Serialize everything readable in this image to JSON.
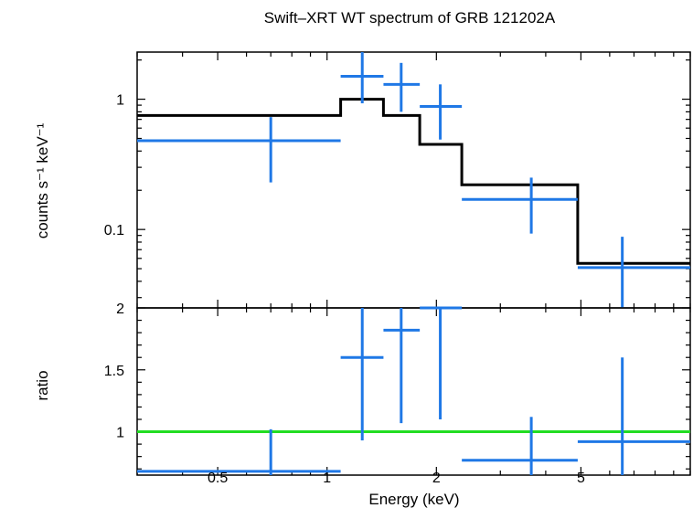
{
  "chart_data": {
    "type": "line",
    "title": "Swift–XRT WT spectrum of GRB 121202A",
    "xlabel": "Energy (keV)",
    "x_scale": "log",
    "xlim": [
      0.3,
      10
    ],
    "x_ticks": [
      0.5,
      1,
      2,
      5
    ],
    "x_tick_labels": [
      "0.5",
      "1",
      "2",
      "5"
    ],
    "panels": [
      {
        "name": "spectrum",
        "ylabel": "counts s⁻¹ keV⁻¹",
        "y_scale": "log",
        "ylim": [
          0.025,
          2.3
        ],
        "y_ticks": [
          0.1,
          1
        ],
        "y_tick_labels": [
          "0.1",
          "1"
        ],
        "data_color": "#1f78e6",
        "model_color": "#000000",
        "data": [
          {
            "x": 0.7,
            "xlo": 0.3,
            "xhi": 1.09,
            "y": 0.48,
            "ylo": 0.23,
            "yhi": 0.73
          },
          {
            "x": 1.25,
            "xlo": 1.09,
            "xhi": 1.43,
            "y": 1.5,
            "ylo": 0.93,
            "yhi": 2.3
          },
          {
            "x": 1.6,
            "xlo": 1.43,
            "xhi": 1.8,
            "y": 1.3,
            "ylo": 0.8,
            "yhi": 1.9
          },
          {
            "x": 2.05,
            "xlo": 1.8,
            "xhi": 2.35,
            "y": 0.88,
            "ylo": 0.49,
            "yhi": 1.3
          },
          {
            "x": 3.65,
            "xlo": 2.35,
            "xhi": 4.9,
            "y": 0.17,
            "ylo": 0.093,
            "yhi": 0.25
          },
          {
            "x": 6.5,
            "xlo": 4.9,
            "xhi": 10,
            "y": 0.051,
            "ylo": 0.025,
            "yhi": 0.088
          }
        ],
        "model_steps": [
          {
            "xlo": 0.3,
            "xhi": 1.09,
            "y": 0.75
          },
          {
            "xlo": 1.09,
            "xhi": 1.43,
            "y": 1.0
          },
          {
            "xlo": 1.43,
            "xhi": 1.8,
            "y": 0.75
          },
          {
            "xlo": 1.8,
            "xhi": 2.35,
            "y": 0.45
          },
          {
            "xlo": 2.35,
            "xhi": 4.9,
            "y": 0.22
          },
          {
            "xlo": 4.9,
            "xhi": 10,
            "y": 0.055
          }
        ]
      },
      {
        "name": "ratio",
        "ylabel": "ratio",
        "y_scale": "linear",
        "ylim": [
          0.65,
          2.0
        ],
        "y_ticks": [
          1,
          1.5,
          2
        ],
        "y_tick_labels": [
          "1",
          "1.5",
          "2"
        ],
        "data_color": "#1f78e6",
        "reference_line": {
          "y": 1,
          "color": "#22dd22"
        },
        "data": [
          {
            "x": 0.7,
            "xlo": 0.3,
            "xhi": 1.09,
            "y": 0.68,
            "ylo": 0.65,
            "yhi": 1.02
          },
          {
            "x": 1.25,
            "xlo": 1.09,
            "xhi": 1.43,
            "y": 1.6,
            "ylo": 0.93,
            "yhi": 2.0
          },
          {
            "x": 1.6,
            "xlo": 1.43,
            "xhi": 1.8,
            "y": 1.82,
            "ylo": 1.07,
            "yhi": 2.0
          },
          {
            "x": 2.05,
            "xlo": 1.8,
            "xhi": 2.35,
            "y": 2.0,
            "ylo": 1.1,
            "yhi": 2.0
          },
          {
            "x": 3.65,
            "xlo": 2.35,
            "xhi": 4.9,
            "y": 0.77,
            "ylo": 0.65,
            "yhi": 1.12
          },
          {
            "x": 6.5,
            "xlo": 4.9,
            "xhi": 10,
            "y": 0.92,
            "ylo": 0.65,
            "yhi": 1.6
          }
        ]
      }
    ]
  }
}
